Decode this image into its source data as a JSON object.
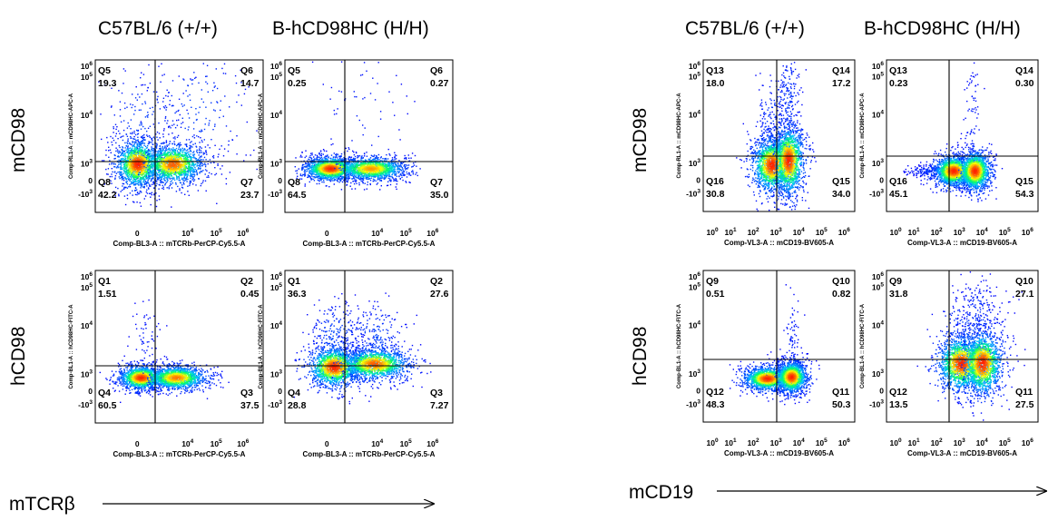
{
  "titles": {
    "left_col1": "C57BL/6 (+/+)",
    "left_col2": "B-hCD98HC (H/H)",
    "right_col1": "C57BL/6 (+/+)",
    "right_col2": "B-hCD98HC (H/H)",
    "row1": "mCD98",
    "row2": "hCD98",
    "left_bottom": "mTCRβ",
    "right_bottom": "mCD19"
  },
  "axis_labels": {
    "tcrb_x": "Comp-BL3-A :: mTCRb-PerCP-Cy5.5-A",
    "cd19_x": "Comp-VL3-A :: mCD19-BV605-A",
    "mcd98_y": "Comp-RL1-A :: mCD98HC-APC-A",
    "hcd98_y": "Comp-BL1-A :: hCD98HC-FITC-A"
  },
  "colors": {
    "density_scale": [
      "#0000ff",
      "#00c8ff",
      "#00ff66",
      "#ffff00",
      "#ff7700",
      "#ff0000"
    ],
    "gate_line": "#000000"
  },
  "chart_data": [
    {
      "type": "scatter",
      "title": "C57BL/6 (+/+)",
      "xlabel": "Comp-BL3-A :: mTCRb-PerCP-Cy5.5-A",
      "ylabel": "Comp-RL1-A :: mCD98HC-APC-A",
      "xticks": [
        "0",
        "10^4",
        "10^5",
        "10^6"
      ],
      "yticks": [
        "10^6",
        "10^5",
        "10^4",
        "10^3",
        "0",
        "-10^3"
      ],
      "quadrants": {
        "tl": {
          "name": "Q5",
          "value": "19.3"
        },
        "tr": {
          "name": "Q6",
          "value": "14.7"
        },
        "bl": {
          "name": "Q8",
          "value": "42.2"
        },
        "br": {
          "name": "Q7",
          "value": "23.7"
        }
      }
    },
    {
      "type": "scatter",
      "title": "B-hCD98HC (H/H)",
      "xlabel": "Comp-BL3-A :: mTCRb-PerCP-Cy5.5-A",
      "ylabel": "Comp-RL1-A :: mCD98HC-APC-A",
      "xticks": [
        "0",
        "10^4",
        "10^5",
        "10^6"
      ],
      "yticks": [
        "10^6",
        "10^5",
        "10^4",
        "10^3",
        "0",
        "-10^3"
      ],
      "quadrants": {
        "tl": {
          "name": "Q5",
          "value": "0.25"
        },
        "tr": {
          "name": "Q6",
          "value": "0.27"
        },
        "bl": {
          "name": "Q8",
          "value": "64.5"
        },
        "br": {
          "name": "Q7",
          "value": "35.0"
        }
      }
    },
    {
      "type": "scatter",
      "title": "C57BL/6 (+/+)",
      "xlabel": "Comp-BL3-A :: mTCRb-PerCP-Cy5.5-A",
      "ylabel": "Comp-BL1-A :: hCD98HC-FITC-A",
      "xticks": [
        "0",
        "10^4",
        "10^5",
        "10^6"
      ],
      "yticks": [
        "10^6",
        "10^5",
        "10^4",
        "10^3",
        "0",
        "-10^3"
      ],
      "quadrants": {
        "tl": {
          "name": "Q1",
          "value": "1.51"
        },
        "tr": {
          "name": "Q2",
          "value": "0.45"
        },
        "bl": {
          "name": "Q4",
          "value": "60.5"
        },
        "br": {
          "name": "Q3",
          "value": "37.5"
        }
      }
    },
    {
      "type": "scatter",
      "title": "B-hCD98HC (H/H)",
      "xlabel": "Comp-BL3-A :: mTCRb-PerCP-Cy5.5-A",
      "ylabel": "Comp-BL1-A :: hCD98HC-FITC-A",
      "xticks": [
        "0",
        "10^4",
        "10^5",
        "10^6"
      ],
      "yticks": [
        "10^6",
        "10^5",
        "10^4",
        "10^3",
        "0",
        "-10^3"
      ],
      "quadrants": {
        "tl": {
          "name": "Q1",
          "value": "36.3"
        },
        "tr": {
          "name": "Q2",
          "value": "27.6"
        },
        "bl": {
          "name": "Q4",
          "value": "28.8"
        },
        "br": {
          "name": "Q3",
          "value": "7.27"
        }
      }
    },
    {
      "type": "scatter",
      "title": "C57BL/6 (+/+)",
      "xlabel": "Comp-VL3-A :: mCD19-BV605-A",
      "ylabel": "Comp-RL1-A :: mCD98HC-APC-A",
      "xticks": [
        "10^0",
        "10^1",
        "10^2",
        "10^3",
        "10^4",
        "10^5",
        "10^6"
      ],
      "yticks": [
        "10^6",
        "10^5",
        "10^4",
        "10^3",
        "0",
        "-10^3"
      ],
      "quadrants": {
        "tl": {
          "name": "Q13",
          "value": "18.0"
        },
        "tr": {
          "name": "Q14",
          "value": "17.2"
        },
        "bl": {
          "name": "Q16",
          "value": "30.8"
        },
        "br": {
          "name": "Q15",
          "value": "34.0"
        }
      }
    },
    {
      "type": "scatter",
      "title": "B-hCD98HC (H/H)",
      "xlabel": "Comp-VL3-A :: mCD19-BV605-A",
      "ylabel": "Comp-RL1-A :: mCD98HC-APC-A",
      "xticks": [
        "10^0",
        "10^1",
        "10^2",
        "10^3",
        "10^4",
        "10^5",
        "10^6"
      ],
      "yticks": [
        "10^6",
        "10^5",
        "10^4",
        "10^3",
        "0",
        "-10^3"
      ],
      "quadrants": {
        "tl": {
          "name": "Q13",
          "value": "0.23"
        },
        "tr": {
          "name": "Q14",
          "value": "0.30"
        },
        "bl": {
          "name": "Q16",
          "value": "45.1"
        },
        "br": {
          "name": "Q15",
          "value": "54.3"
        }
      }
    },
    {
      "type": "scatter",
      "title": "C57BL/6 (+/+)",
      "xlabel": "Comp-VL3-A :: mCD19-BV605-A",
      "ylabel": "Comp-BL1-A :: hCD98HC-FITC-A",
      "xticks": [
        "10^0",
        "10^1",
        "10^2",
        "10^3",
        "10^4",
        "10^5",
        "10^6"
      ],
      "yticks": [
        "10^6",
        "10^5",
        "10^4",
        "10^3",
        "0",
        "-10^3"
      ],
      "quadrants": {
        "tl": {
          "name": "Q9",
          "value": "0.51"
        },
        "tr": {
          "name": "Q10",
          "value": "0.82"
        },
        "bl": {
          "name": "Q12",
          "value": "48.3"
        },
        "br": {
          "name": "Q11",
          "value": "50.3"
        }
      }
    },
    {
      "type": "scatter",
      "title": "B-hCD98HC (H/H)",
      "xlabel": "Comp-VL3-A :: mCD19-BV605-A",
      "ylabel": "Comp-BL1-A :: hCD98HC-FITC-A",
      "xticks": [
        "10^0",
        "10^1",
        "10^2",
        "10^3",
        "10^4",
        "10^5",
        "10^6"
      ],
      "yticks": [
        "10^6",
        "10^5",
        "10^4",
        "10^3",
        "0",
        "-10^3"
      ],
      "quadrants": {
        "tl": {
          "name": "Q9",
          "value": "31.8"
        },
        "tr": {
          "name": "Q10",
          "value": "27.1"
        },
        "bl": {
          "name": "Q12",
          "value": "13.5"
        },
        "br": {
          "name": "Q11",
          "value": "27.5"
        }
      }
    }
  ]
}
